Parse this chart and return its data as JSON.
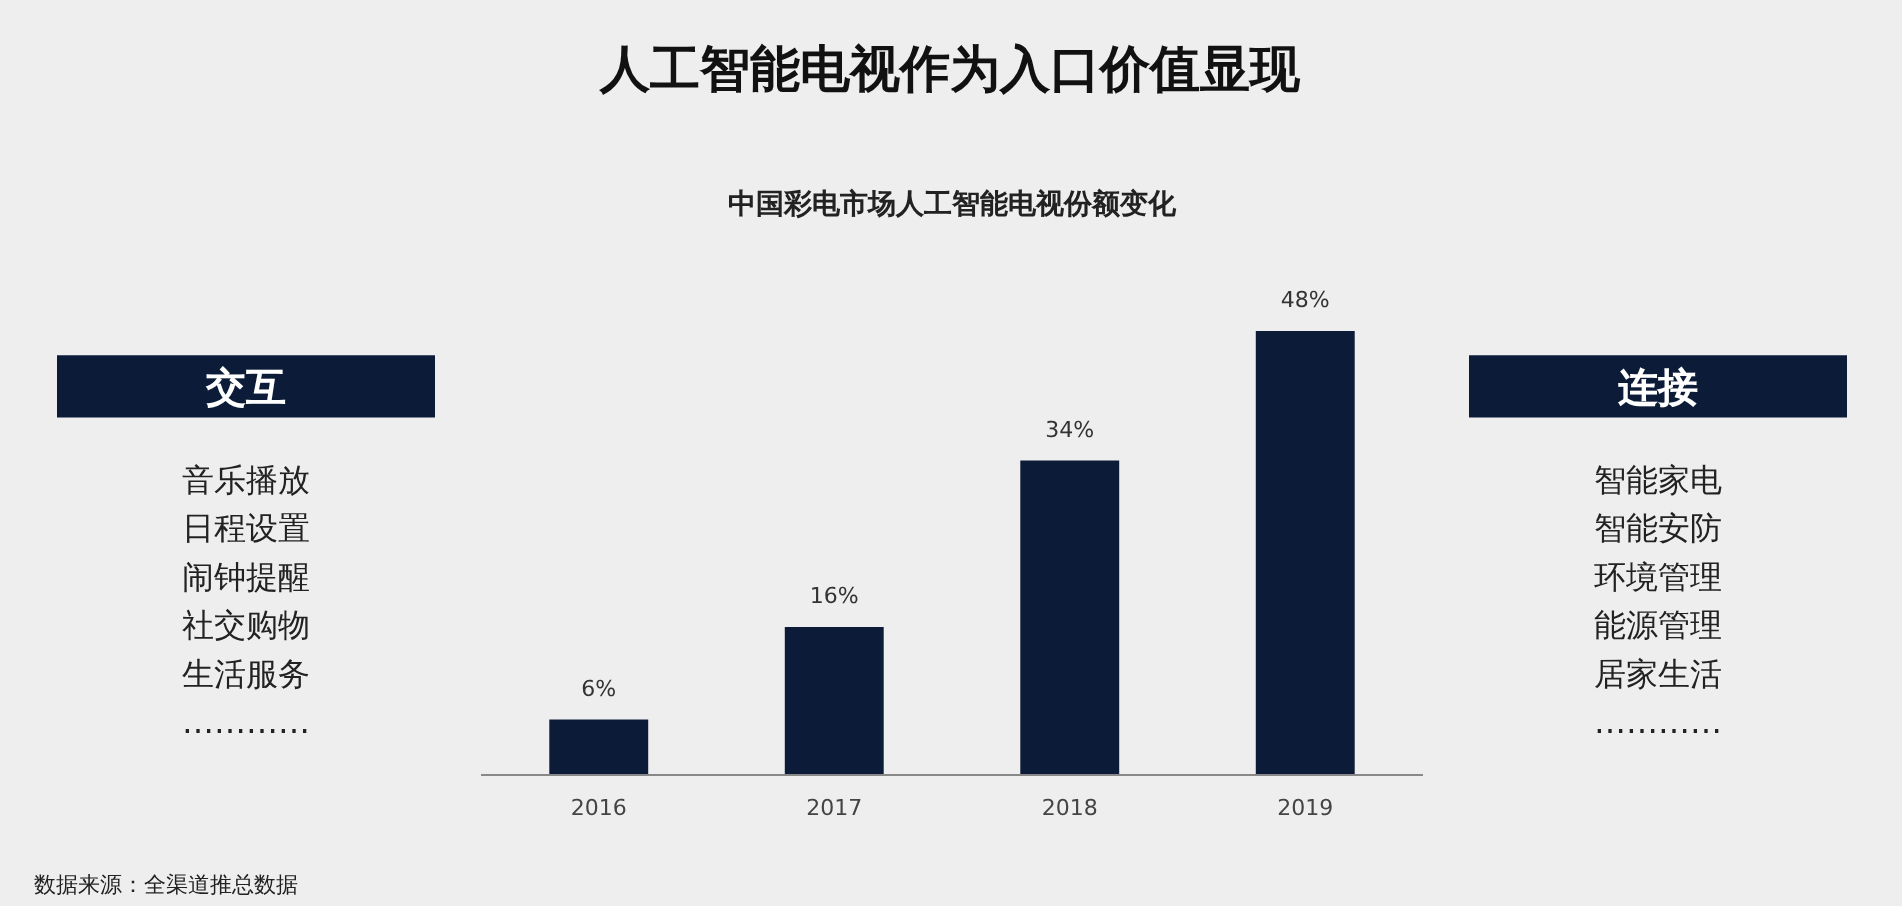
{
  "chart_data": [
    {
      "type": "other",
      "title": "交互",
      "color": "#0c1c38",
      "annotations": [
        "音乐播放",
        "日程设置",
        "闹钟提醒",
        "社交购物",
        "生活服务",
        "…………"
      ]
    },
    {
      "type": "bar",
      "title": "人工智能电视作为入口价值显现",
      "subtitle": "中国彩电市场人工智能电视份额变化",
      "categories": [
        "2016",
        "2017",
        "2018",
        "2019"
      ],
      "values": [
        6,
        16,
        34,
        48
      ],
      "value_labels": [
        "6%",
        "16%",
        "34%",
        "48%"
      ],
      "color": "#0c1c38",
      "annotations": [
        "数据来源：全渠道推总数据"
      ]
    },
    {
      "type": "other",
      "title": "连接",
      "color": "#0c1c38",
      "annotations": [
        "智能家电",
        "智能安防",
        "环境管理",
        "能源管理",
        "居家生活",
        "…………"
      ]
    }
  ]
}
